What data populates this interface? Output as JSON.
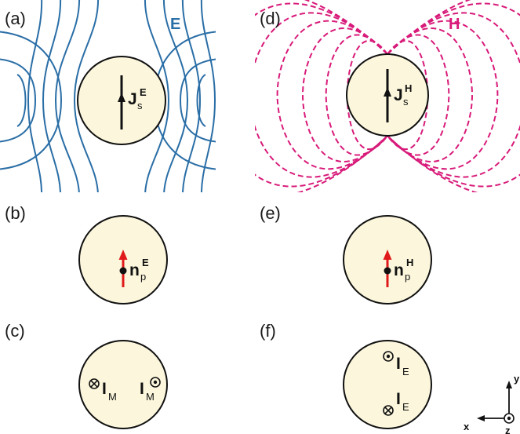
{
  "colors": {
    "e_field": "#2a6ea6",
    "h_field": "#d81b7a",
    "sphere_fill": "#fbf6dc",
    "normal_arrow": "#e01a1a"
  },
  "panels": {
    "a": {
      "label": "(a)",
      "field_label": "E",
      "current_main": "J",
      "current_sub": "s",
      "current_sup": "E"
    },
    "b": {
      "label": "(b)",
      "normal_main": "n",
      "normal_sub": "p",
      "normal_sup": "E"
    },
    "c": {
      "label": "(c)",
      "current_main": "I",
      "current_sub": "M"
    },
    "d": {
      "label": "(d)",
      "field_label": "H",
      "current_main": "J",
      "current_sub": "s",
      "current_sup": "H"
    },
    "e": {
      "label": "(e)",
      "normal_main": "n",
      "normal_sub": "p",
      "normal_sup": "H"
    },
    "f": {
      "label": "(f)",
      "current_main": "I",
      "current_sub": "E"
    }
  },
  "axes": {
    "x": "x",
    "y": "y",
    "z": "z"
  }
}
